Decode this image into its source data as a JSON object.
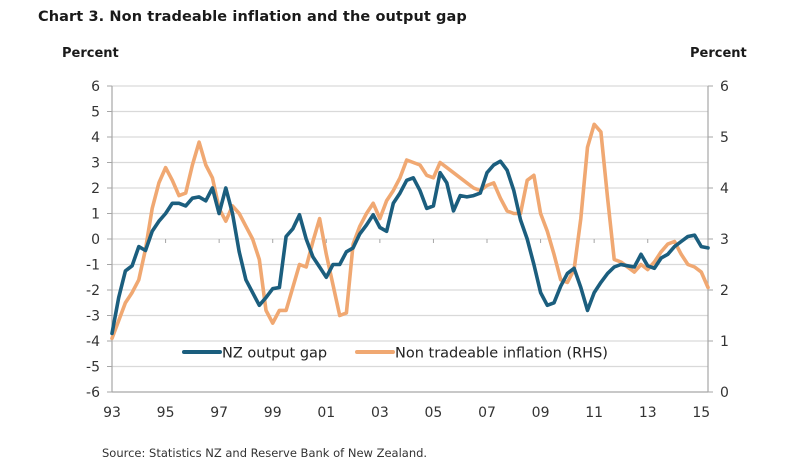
{
  "title": "Chart 3. Non tradeable inflation and the output gap",
  "left_unit": "Percent",
  "right_unit": "Percent",
  "source": "Source: Statistics NZ and Reserve Bank of New Zealand.",
  "colors": {
    "output_gap": "#1b5e7e",
    "non_tradeable": "#f0a872",
    "grid": "#d9d9d9",
    "axis": "#a6a6a6"
  },
  "chart_data": {
    "type": "line",
    "title": "Chart 3. Non tradeable inflation and the output gap",
    "xlabel": "",
    "ylabel": "Percent",
    "y2label": "Percent",
    "x_start": 1993.0,
    "x_step": 0.25,
    "xlim": [
      1993.0,
      2015.25
    ],
    "x_tick_values": [
      1993,
      1995,
      1997,
      1999,
      2001,
      2003,
      2005,
      2007,
      2009,
      2011,
      2013,
      2015
    ],
    "x_tick_labels": [
      "93",
      "95",
      "97",
      "99",
      "01",
      "03",
      "05",
      "07",
      "09",
      "11",
      "13",
      "15"
    ],
    "ylim": [
      -6,
      6
    ],
    "y_ticks": [
      6,
      5,
      4,
      3,
      2,
      1,
      0,
      -1,
      -2,
      -3,
      -4,
      -5,
      -6
    ],
    "y2lim": [
      0,
      6
    ],
    "y2_ticks": [
      6,
      5,
      4,
      3,
      2,
      1,
      0
    ],
    "grid": true,
    "legend_position": "bottom-inside",
    "series": [
      {
        "name": "NZ output gap",
        "axis": "left",
        "values": [
          -3.7,
          -2.3,
          -1.25,
          -1.05,
          -0.3,
          -0.45,
          0.3,
          0.7,
          1.0,
          1.4,
          1.4,
          1.3,
          1.6,
          1.65,
          1.5,
          2.0,
          1.0,
          2.0,
          1.0,
          -0.5,
          -1.6,
          -2.1,
          -2.6,
          -2.3,
          -1.95,
          -1.9,
          0.1,
          0.4,
          0.95,
          0.0,
          -0.7,
          -1.1,
          -1.5,
          -1.0,
          -1.0,
          -0.5,
          -0.35,
          0.2,
          0.55,
          0.95,
          0.45,
          0.3,
          1.4,
          1.8,
          2.3,
          2.4,
          1.9,
          1.2,
          1.3,
          2.6,
          2.2,
          1.1,
          1.7,
          1.65,
          1.7,
          1.8,
          2.6,
          2.9,
          3.05,
          2.7,
          1.9,
          0.75,
          0.0,
          -1.0,
          -2.1,
          -2.6,
          -2.5,
          -1.85,
          -1.35,
          -1.15,
          -1.9,
          -2.8,
          -2.1,
          -1.7,
          -1.35,
          -1.1,
          -1.0,
          -1.05,
          -1.1,
          -0.6,
          -1.05,
          -1.15,
          -0.75,
          -0.6,
          -0.3,
          -0.1,
          0.1,
          0.15,
          -0.3,
          -0.35
        ]
      },
      {
        "name": "Non tradeable inflation (RHS)",
        "axis": "right",
        "values": [
          1.05,
          1.4,
          1.75,
          1.95,
          2.2,
          2.8,
          3.6,
          4.1,
          4.4,
          4.15,
          3.85,
          3.9,
          4.45,
          4.9,
          4.45,
          4.2,
          3.6,
          3.35,
          3.65,
          3.5,
          3.25,
          3.0,
          2.6,
          1.6,
          1.35,
          1.6,
          1.6,
          2.05,
          2.5,
          2.45,
          2.95,
          3.4,
          2.7,
          2.1,
          1.5,
          1.55,
          2.9,
          3.25,
          3.5,
          3.7,
          3.4,
          3.75,
          3.95,
          4.2,
          4.55,
          4.5,
          4.45,
          4.25,
          4.2,
          4.5,
          4.4,
          4.3,
          4.2,
          4.1,
          4.0,
          3.95,
          4.05,
          4.1,
          3.8,
          3.55,
          3.5,
          3.5,
          4.15,
          4.25,
          3.5,
          3.15,
          2.7,
          2.2,
          2.15,
          2.4,
          3.4,
          4.8,
          5.25,
          5.1,
          3.8,
          2.6,
          2.55,
          2.45,
          2.35,
          2.5,
          2.4,
          2.55,
          2.75,
          2.9,
          2.95,
          2.7,
          2.5,
          2.45,
          2.35,
          2.05
        ]
      }
    ]
  }
}
